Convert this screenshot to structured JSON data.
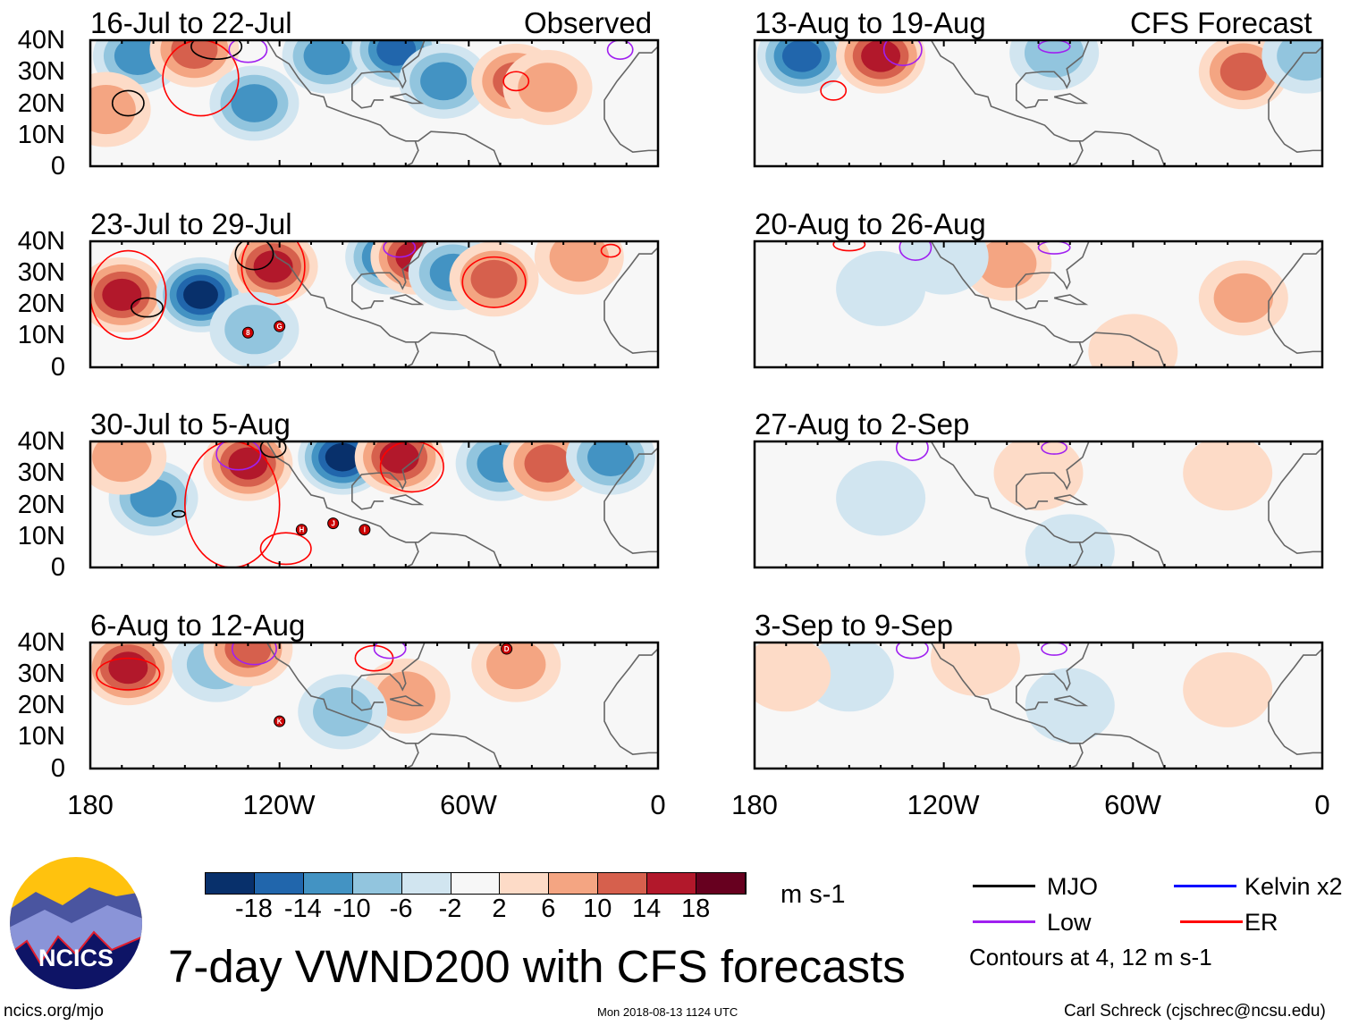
{
  "header": {
    "observed_label": "Observed",
    "forecast_label": "CFS Forecast"
  },
  "lat_labels": [
    "40N",
    "30N",
    "20N",
    "10N",
    "0"
  ],
  "lon_labels": [
    "180",
    "120W",
    "60W",
    "0"
  ],
  "palette": [
    "#08306b",
    "#2166ac",
    "#4393c3",
    "#92c5de",
    "#d1e5f0",
    "#f7f7f7",
    "#fddbc7",
    "#f4a582",
    "#d6604d",
    "#b2182b",
    "#67001f"
  ],
  "contour_colors": {
    "mjo": "#000000",
    "kelvin": "#0000ff",
    "low": "#a020f0",
    "er": "#ff0000"
  },
  "chart_data": {
    "type": "heatmap",
    "variable": "200-hPa meridional wind anomaly",
    "units": "m s-1",
    "lon_range": [
      -180,
      0
    ],
    "lat_range": [
      0,
      40
    ],
    "panels": [
      {
        "title": "16-Jul to 22-Jul",
        "column": "observed",
        "blobs": [
          [
            -165,
            35,
            -10
          ],
          [
            -147,
            37,
            10
          ],
          [
            -175,
            18,
            6
          ],
          [
            -128,
            20,
            -10
          ],
          [
            -105,
            35,
            -10
          ],
          [
            -83,
            37,
            -14
          ],
          [
            -68,
            27,
            -10
          ],
          [
            -45,
            27,
            10
          ],
          [
            -35,
            25,
            6
          ]
        ],
        "contours": [
          [
            "mjo",
            -140,
            38,
            8,
            4
          ],
          [
            "mjo",
            -168,
            20,
            5,
            4
          ],
          [
            "er",
            -145,
            28,
            12,
            12
          ],
          [
            "low",
            -130,
            37,
            6,
            4
          ],
          [
            "er",
            -45,
            27,
            4,
            3
          ],
          [
            "low",
            -12,
            37,
            4,
            3
          ]
        ],
        "storms": []
      },
      {
        "title": "23-Jul to 29-Jul",
        "column": "observed",
        "blobs": [
          [
            -170,
            23,
            14
          ],
          [
            -145,
            23,
            -18
          ],
          [
            -122,
            32,
            14
          ],
          [
            -85,
            35,
            -14
          ],
          [
            -77,
            35,
            14
          ],
          [
            -65,
            30,
            -10
          ],
          [
            -52,
            28,
            10
          ],
          [
            -25,
            35,
            6
          ],
          [
            -128,
            12,
            -6
          ]
        ],
        "contours": [
          [
            "er",
            -168,
            23,
            12,
            14
          ],
          [
            "mjo",
            -162,
            19,
            5,
            3
          ],
          [
            "er",
            -122,
            32,
            10,
            12
          ],
          [
            "mjo",
            -128,
            36,
            6,
            5
          ],
          [
            "er",
            -52,
            27,
            10,
            8
          ],
          [
            "low",
            -82,
            38,
            5,
            3
          ],
          [
            "er",
            -15,
            37,
            3,
            2
          ]
        ],
        "storms": [
          {
            "label": "8",
            "lon": -130,
            "lat": 11
          },
          {
            "label": "G",
            "lon": -120,
            "lat": 13
          }
        ]
      },
      {
        "title": "30-Jul to 5-Aug",
        "column": "observed",
        "blobs": [
          [
            -160,
            22,
            -10
          ],
          [
            -130,
            33,
            14
          ],
          [
            -100,
            35,
            -18
          ],
          [
            -82,
            35,
            14
          ],
          [
            -50,
            33,
            -10
          ],
          [
            -35,
            33,
            10
          ],
          [
            -15,
            35,
            -10
          ],
          [
            -170,
            35,
            6
          ]
        ],
        "contours": [
          [
            "er",
            -135,
            20,
            15,
            20
          ],
          [
            "low",
            -133,
            36,
            7,
            5
          ],
          [
            "mjo",
            -122,
            38,
            4,
            3
          ],
          [
            "er",
            -118,
            6,
            8,
            5
          ],
          [
            "er",
            -78,
            32,
            10,
            8
          ],
          [
            "mjo",
            -152,
            17,
            2,
            1
          ]
        ],
        "storms": [
          {
            "label": "H",
            "lon": -113,
            "lat": 12
          },
          {
            "label": "J",
            "lon": -103,
            "lat": 14
          },
          {
            "label": "I",
            "lon": -93,
            "lat": 12
          }
        ]
      },
      {
        "title": "6-Aug to 12-Aug",
        "column": "observed",
        "blobs": [
          [
            -168,
            32,
            14
          ],
          [
            -140,
            33,
            -6
          ],
          [
            -130,
            38,
            10
          ],
          [
            -80,
            23,
            6
          ],
          [
            -45,
            33,
            6
          ],
          [
            -100,
            18,
            -6
          ]
        ],
        "contours": [
          [
            "er",
            -168,
            30,
            10,
            5
          ],
          [
            "low",
            -128,
            38,
            7,
            5
          ],
          [
            "er",
            -90,
            35,
            6,
            4
          ],
          [
            "low",
            -85,
            38,
            5,
            3
          ]
        ],
        "storms": [
          {
            "label": "K",
            "lon": -120,
            "lat": 15
          },
          {
            "label": "D",
            "lon": -48,
            "lat": 38
          }
        ]
      },
      {
        "title": "13-Aug to 19-Aug",
        "column": "forecast",
        "blobs": [
          [
            -165,
            35,
            -14
          ],
          [
            -140,
            35,
            14
          ],
          [
            -25,
            30,
            10
          ],
          [
            -5,
            35,
            -6
          ],
          [
            -85,
            36,
            -6
          ]
        ],
        "contours": [
          [
            "low",
            -133,
            37,
            6,
            5
          ],
          [
            "er",
            -155,
            24,
            4,
            3
          ],
          [
            "low",
            -85,
            38,
            5,
            2
          ]
        ],
        "storms": []
      },
      {
        "title": "20-Aug to 26-Aug",
        "column": "forecast",
        "blobs": [
          [
            -100,
            33,
            6
          ],
          [
            -140,
            25,
            -2
          ],
          [
            -25,
            22,
            6
          ],
          [
            -120,
            35,
            -2
          ],
          [
            -60,
            5,
            2
          ]
        ],
        "contours": [
          [
            "low",
            -129,
            38,
            5,
            4
          ],
          [
            "er",
            -150,
            39,
            5,
            2
          ],
          [
            "low",
            -85,
            38,
            5,
            2
          ]
        ],
        "storms": []
      },
      {
        "title": "27-Aug to 2-Sep",
        "column": "forecast",
        "blobs": [
          [
            -90,
            30,
            2
          ],
          [
            -140,
            22,
            -2
          ],
          [
            -30,
            30,
            2
          ],
          [
            -80,
            5,
            -2
          ]
        ],
        "contours": [
          [
            "low",
            -130,
            38,
            5,
            4
          ],
          [
            "low",
            -85,
            38,
            4,
            2
          ]
        ],
        "storms": []
      },
      {
        "title": "3-Sep to 9-Sep",
        "column": "forecast",
        "blobs": [
          [
            -150,
            30,
            -2
          ],
          [
            -110,
            35,
            2
          ],
          [
            -80,
            20,
            -2
          ],
          [
            -30,
            25,
            2
          ],
          [
            -170,
            30,
            2
          ]
        ],
        "contours": [
          [
            "low",
            -130,
            38,
            5,
            3
          ],
          [
            "low",
            -85,
            38,
            4,
            2
          ]
        ],
        "storms": []
      }
    ],
    "colorbar": {
      "ticks": [
        "-18",
        "-14",
        "-10",
        "-6",
        "-2",
        "2",
        "6",
        "10",
        "14",
        "18"
      ],
      "units": "m s-1"
    },
    "legend": [
      {
        "key": "mjo",
        "label": "MJO"
      },
      {
        "key": "kelvin",
        "label": "Kelvin x2"
      },
      {
        "key": "low",
        "label": "Low"
      },
      {
        "key": "er",
        "label": "ER"
      }
    ],
    "legend_note": "Contours at 4, 12 m s-1"
  },
  "footer": {
    "title": "7-day VWND200 with CFS forecasts",
    "url": "ncics.org/mjo",
    "timestamp": "Mon 2018-08-13 1124 UTC",
    "credit": "Carl Schreck (cjschrec@ncsu.edu)",
    "logo_text": "NCICS"
  }
}
